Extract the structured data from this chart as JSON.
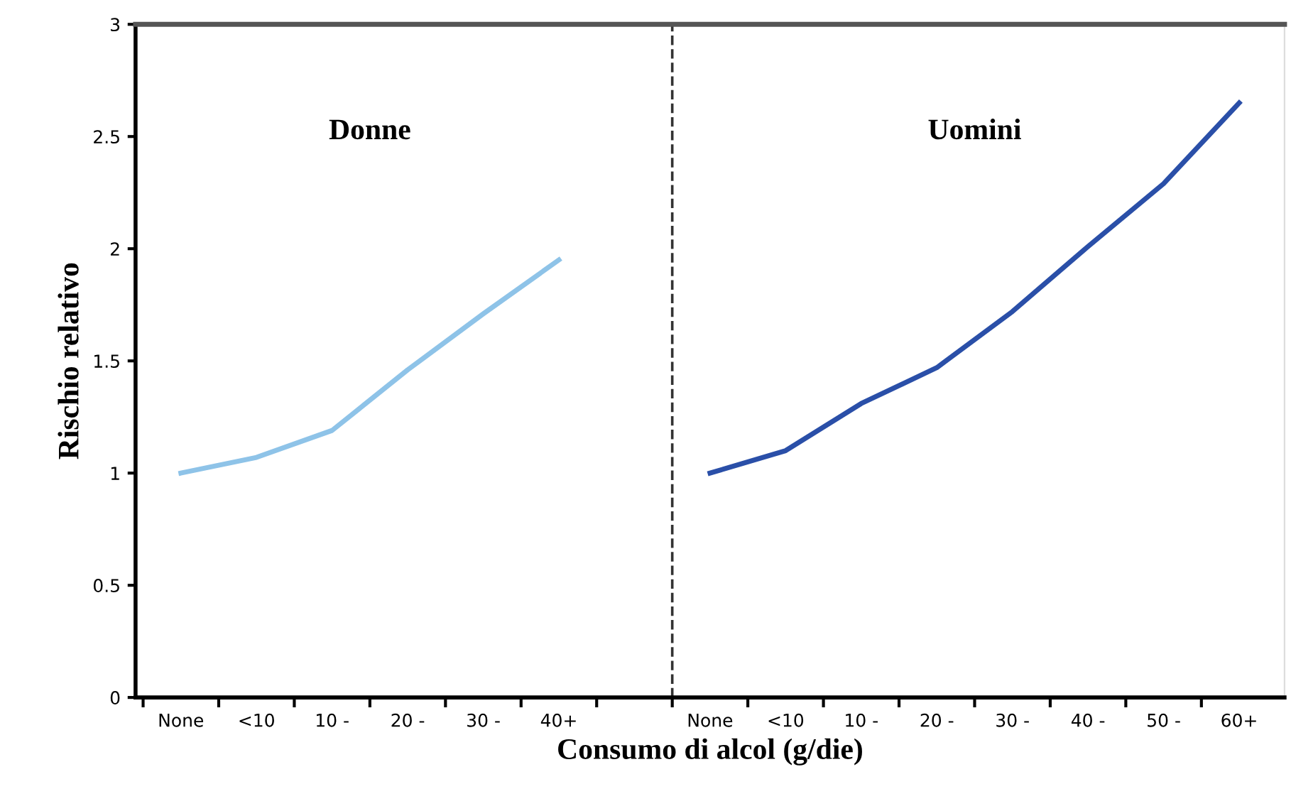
{
  "chart_data": {
    "type": "line",
    "categories": [
      "None",
      "<10",
      "10 -",
      "20 -",
      "30 -",
      "40+",
      null,
      "None",
      "<10",
      "10 -",
      "20 -",
      "30 -",
      "40 -",
      "50 -",
      "60+"
    ],
    "series": [
      {
        "color": "#8ec3e8",
        "values": [
          1.0,
          1.07,
          1.19,
          1.46,
          1.71,
          1.95,
          null,
          null,
          null,
          null,
          null,
          null,
          null,
          null,
          null
        ]
      },
      {
        "color": "#2a4fa8",
        "values": [
          null,
          null,
          null,
          null,
          null,
          null,
          null,
          1.0,
          1.1,
          1.31,
          1.47,
          1.72,
          2.01,
          2.29,
          2.65
        ]
      }
    ],
    "xlabel": "Consumo di alcol (g/die)",
    "ylabel": "Rischio relativo",
    "ylim": [
      0,
      3
    ],
    "yticks": [
      0,
      0.5,
      1,
      1.5,
      2,
      2.5,
      3
    ],
    "annotations": [
      "Donne",
      "Uomini"
    ],
    "grid": false,
    "legend": false,
    "marker": "none",
    "line_style": "solid"
  }
}
